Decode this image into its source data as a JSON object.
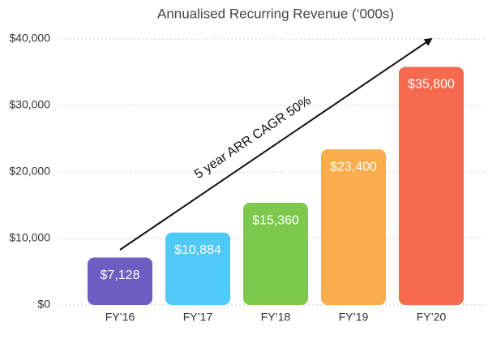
{
  "chart_data": {
    "type": "bar",
    "title": "Annualised Recurring Revenue (‘000s)",
    "categories": [
      "FY’16",
      "FY’17",
      "FY’18",
      "FY’19",
      "FY’20"
    ],
    "values": [
      7128,
      10884,
      15360,
      23400,
      35800
    ],
    "value_labels": [
      "$7,128",
      "$10,884",
      "$15,360",
      "$23,400",
      "$35,800"
    ],
    "colors": [
      "#6b5fc4",
      "#4fc9f6",
      "#7cc94c",
      "#f9ad4d",
      "#f66b4f"
    ],
    "ylim": [
      0,
      40000
    ],
    "yticks": [
      {
        "value": 0,
        "label": "$0"
      },
      {
        "value": 10000,
        "label": "$10,000"
      },
      {
        "value": 20000,
        "label": "$20,000"
      },
      {
        "value": 30000,
        "label": "$30,000"
      },
      {
        "value": 40000,
        "label": "$40,000"
      }
    ],
    "grid": true,
    "annotation": "5 year ARR CAGR 50%"
  }
}
